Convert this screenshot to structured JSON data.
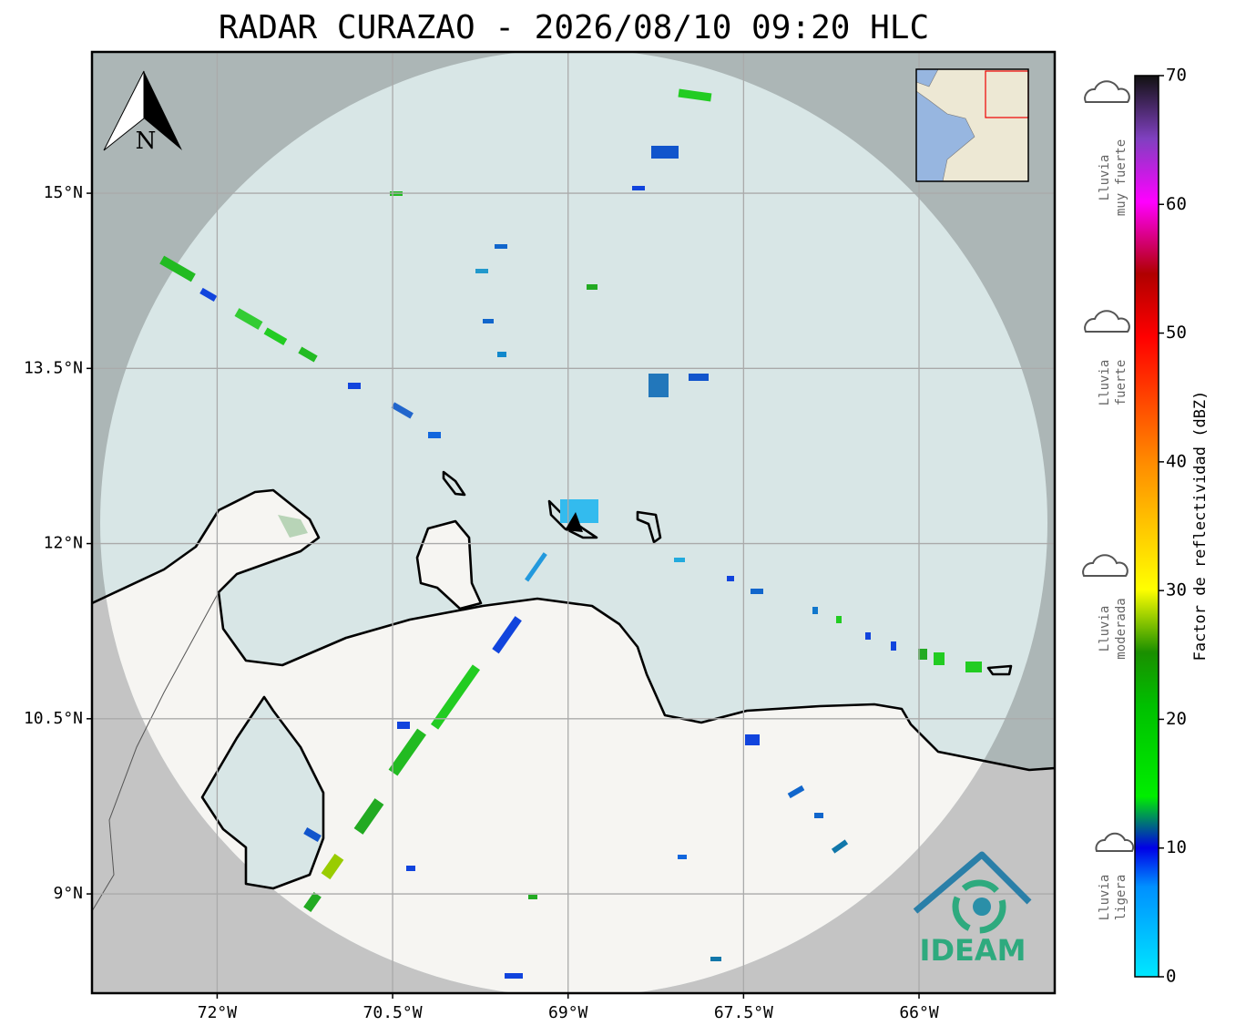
{
  "title": "RADAR CURAZAO - 2026/08/10 09:20 HLC",
  "map": {
    "xlim": [
      -73.07,
      -64.84
    ],
    "ylim": [
      8.15,
      16.21
    ],
    "xticks": [
      {
        "value": -72,
        "label": "72°W"
      },
      {
        "value": -70.5,
        "label": "70.5°W"
      },
      {
        "value": -69,
        "label": "69°W"
      },
      {
        "value": -67.5,
        "label": "67.5°W"
      },
      {
        "value": -66,
        "label": "66°W"
      }
    ],
    "yticks": [
      {
        "value": 15,
        "label": "15°N"
      },
      {
        "value": 13.5,
        "label": "13.5°N"
      },
      {
        "value": 12,
        "label": "12°N"
      },
      {
        "value": 10.5,
        "label": "10.5°N"
      },
      {
        "value": 9,
        "label": "9°N"
      }
    ],
    "north_label": "N",
    "logo": "IDEAM"
  },
  "colorbar": {
    "label": "Factor de reflectividad (dBZ)",
    "lim": [
      0,
      70
    ],
    "ticks": [
      0,
      10,
      20,
      30,
      40,
      50,
      60,
      70
    ]
  },
  "legend": [
    {
      "lines": [
        "Lluvia",
        "muy fuerte"
      ]
    },
    {
      "lines": [
        "Lluvia",
        "fuerte"
      ]
    },
    {
      "lines": [
        "Lluvia",
        "moderada"
      ]
    },
    {
      "lines": [
        "Lluvia",
        "ligera"
      ]
    }
  ]
}
